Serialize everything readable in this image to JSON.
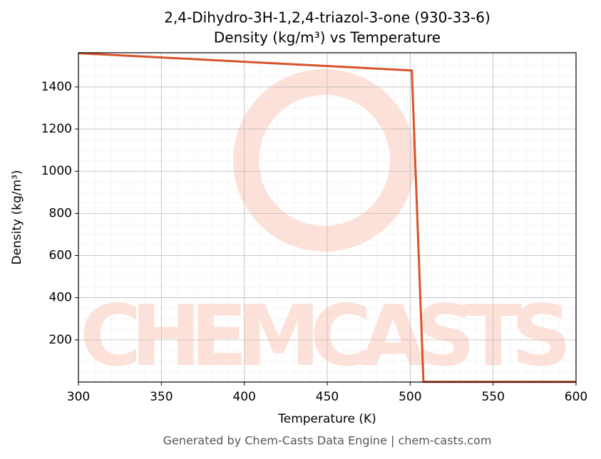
{
  "chart_data": {
    "type": "line",
    "title": "2,4-Dihydro-3H-1,2,4-triazol-3-one (930-33-6)",
    "subtitle": "Density (kg/m³) vs Temperature",
    "x_label": "Temperature (K)",
    "y_label": "Density (kg/m³)",
    "footer": "Generated by Chem-Casts Data Engine | chem-casts.com",
    "watermark": "CHEMCASTS",
    "x": [
      300,
      501,
      508,
      600
    ],
    "series": [
      {
        "name": "Density",
        "color": "#d9532b",
        "values": [
          1560,
          1478,
          1,
          1
        ]
      }
    ],
    "xlim": [
      300,
      600
    ],
    "xticks": [
      300,
      350,
      400,
      450,
      500,
      550,
      600
    ],
    "ylim": [
      0,
      1562
    ],
    "yticks": [
      200,
      400,
      600,
      800,
      1000,
      1200,
      1400
    ],
    "grid": true,
    "minor_grid": true
  }
}
